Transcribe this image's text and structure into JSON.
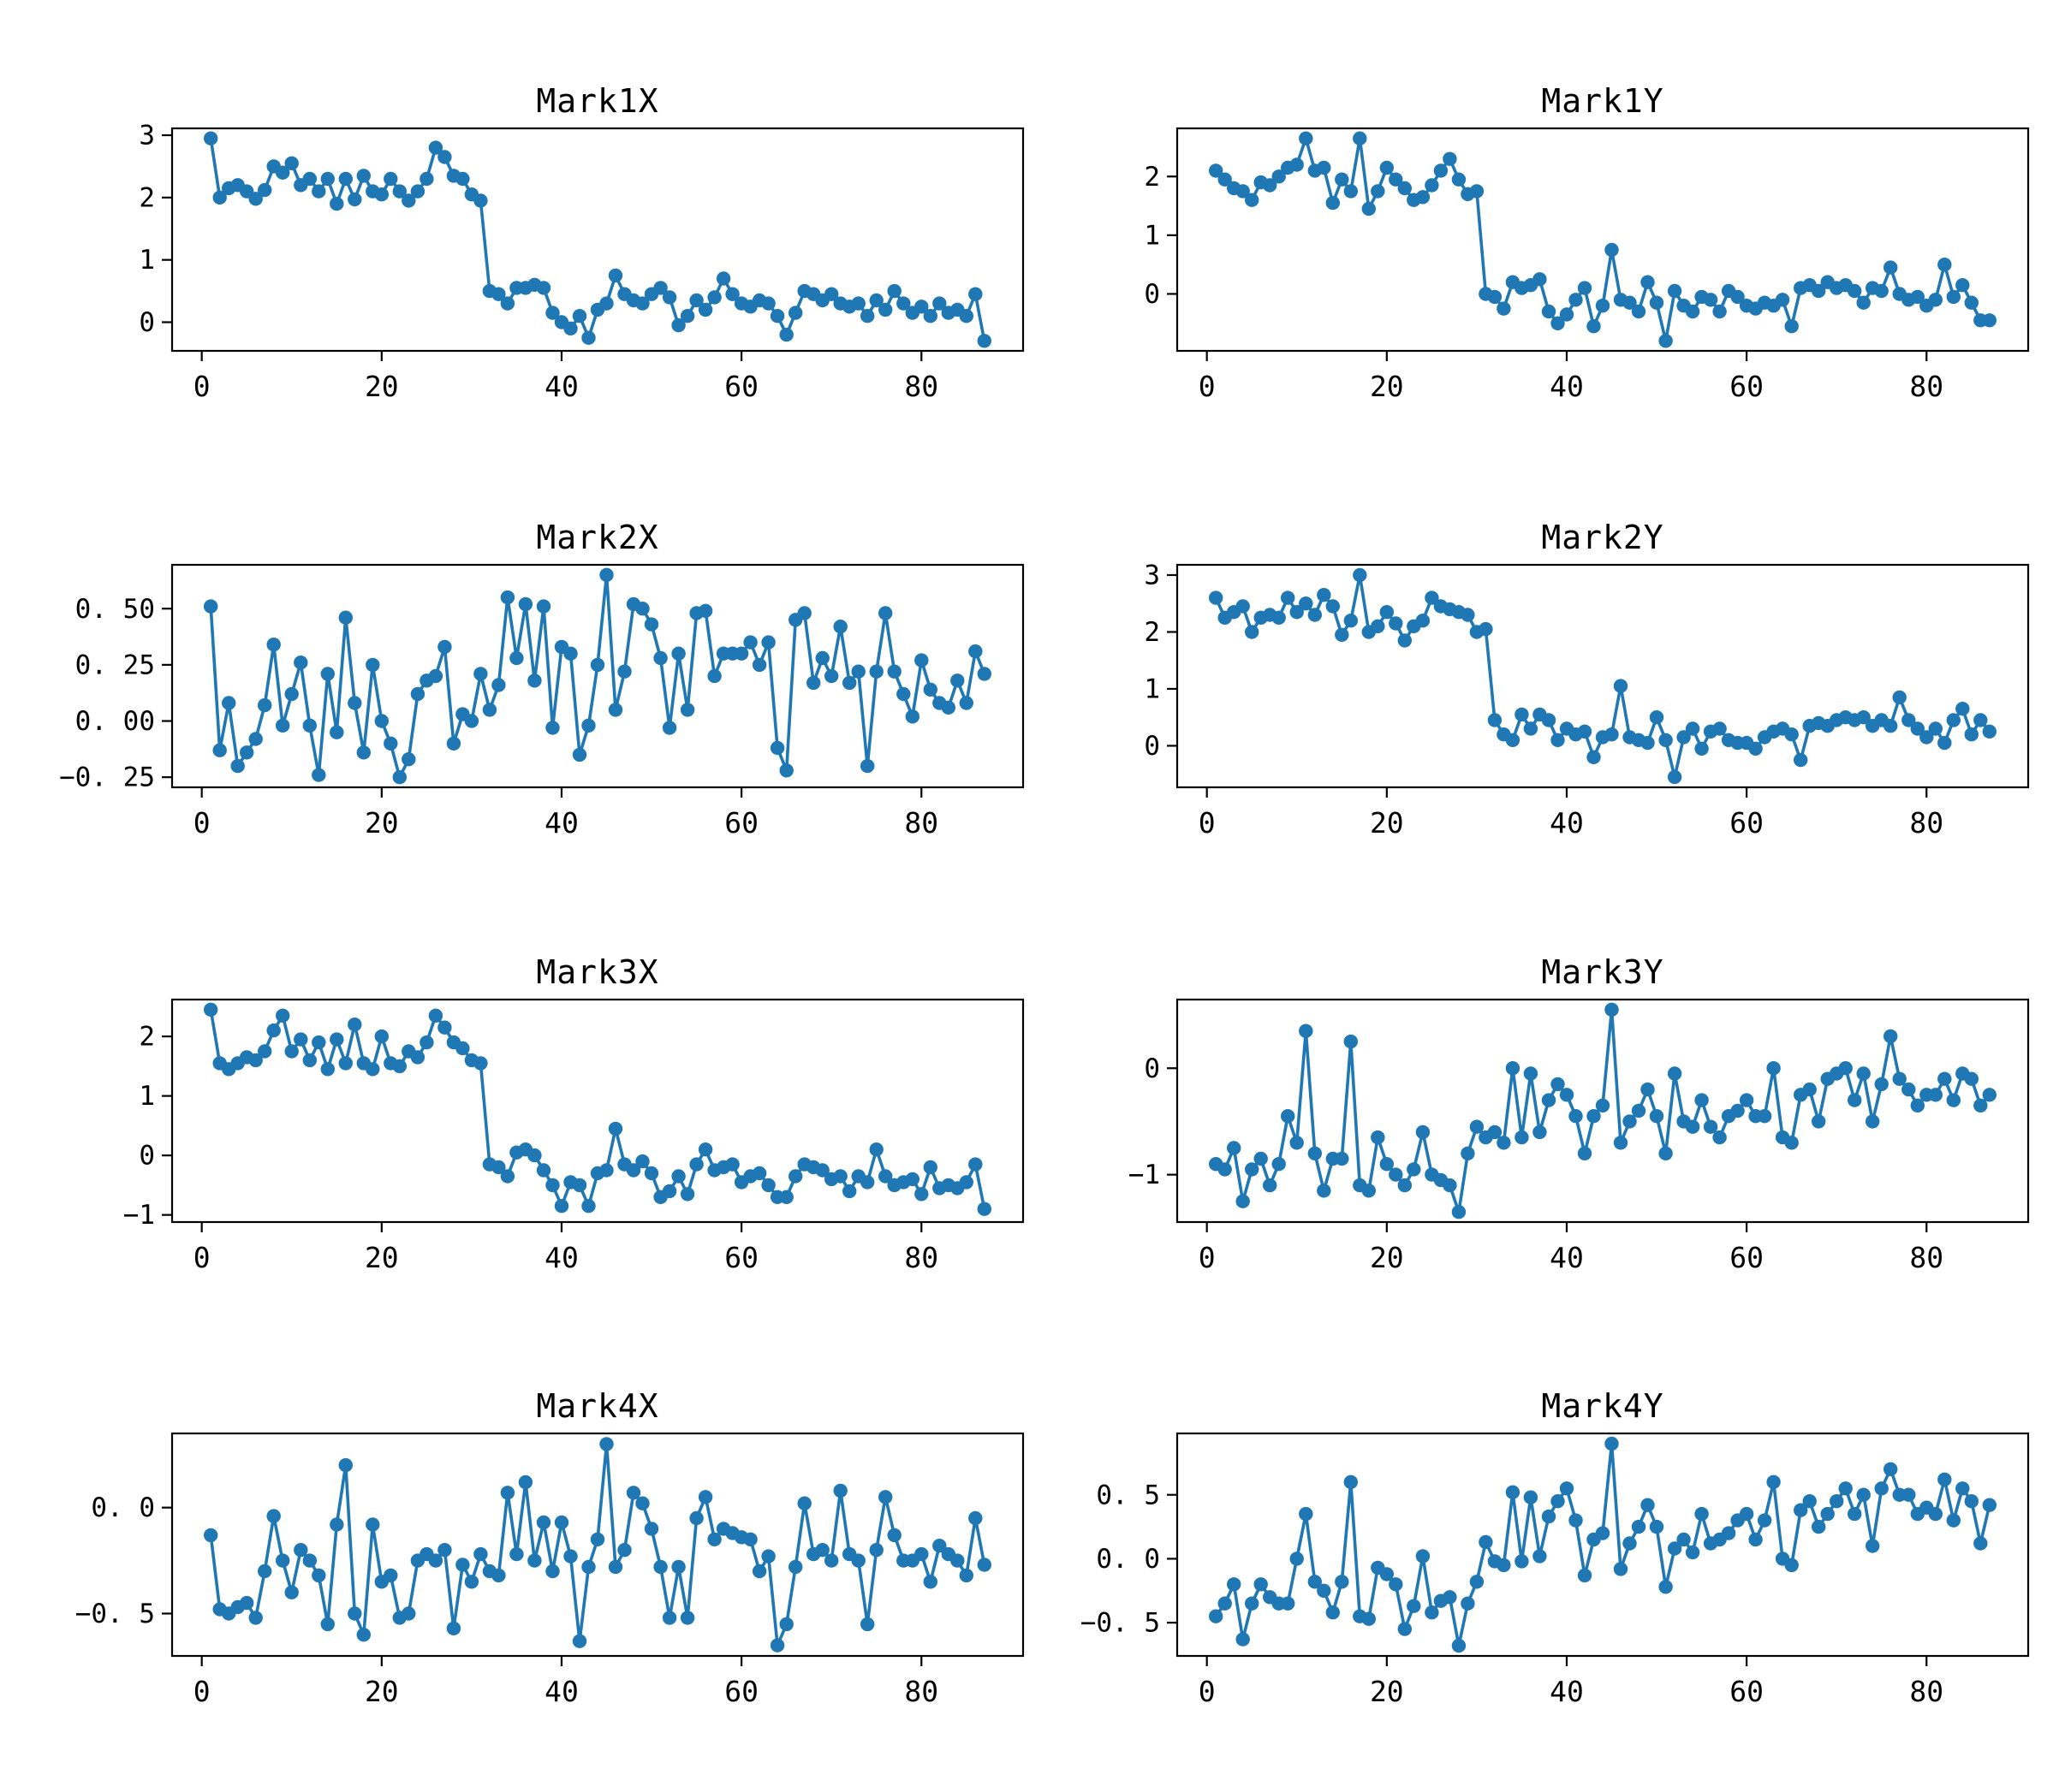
{
  "figure": {
    "background": "#ffffff",
    "series_color": "#1f77b4",
    "axis_color": "#000000",
    "marker": "circle-icon",
    "line_style": "solid",
    "grid": "off",
    "legend": "none"
  },
  "chart_data": [
    {
      "type": "line",
      "title": "Mark1X",
      "x_start": 1,
      "xlim": [
        -3.3,
        91.3
      ],
      "xticks": {
        "values": [
          0,
          20,
          40,
          60,
          80
        ],
        "labels": [
          "0",
          "20",
          "40",
          "60",
          "80"
        ]
      },
      "ylim": [
        -0.46,
        3.11
      ],
      "yticks": {
        "values": [
          0,
          1,
          2,
          3
        ],
        "labels": [
          "0",
          "1",
          "2",
          "3"
        ]
      },
      "values": [
        2.95,
        2.0,
        2.15,
        2.2,
        2.1,
        1.98,
        2.12,
        2.5,
        2.4,
        2.55,
        2.2,
        2.3,
        2.1,
        2.3,
        1.9,
        2.3,
        1.97,
        2.35,
        2.1,
        2.05,
        2.3,
        2.1,
        1.95,
        2.1,
        2.3,
        2.8,
        2.65,
        2.35,
        2.3,
        2.05,
        1.95,
        0.5,
        0.45,
        0.3,
        0.55,
        0.55,
        0.6,
        0.55,
        0.15,
        0.0,
        -0.1,
        0.1,
        -0.25,
        0.2,
        0.3,
        0.75,
        0.45,
        0.35,
        0.3,
        0.45,
        0.55,
        0.4,
        -0.05,
        0.1,
        0.35,
        0.2,
        0.4,
        0.7,
        0.45,
        0.3,
        0.25,
        0.35,
        0.3,
        0.1,
        -0.2,
        0.15,
        0.5,
        0.45,
        0.35,
        0.45,
        0.3,
        0.25,
        0.3,
        0.1,
        0.35,
        0.2,
        0.5,
        0.3,
        0.15,
        0.25,
        0.1,
        0.3,
        0.15,
        0.2,
        0.1,
        0.45,
        -0.3
      ]
    },
    {
      "type": "line",
      "title": "Mark1Y",
      "x_start": 1,
      "xlim": [
        -3.3,
        91.3
      ],
      "xticks": {
        "values": [
          0,
          20,
          40,
          60,
          80
        ],
        "labels": [
          "0",
          "20",
          "40",
          "60",
          "80"
        ]
      },
      "ylim": [
        -0.97,
        2.82
      ],
      "yticks": {
        "values": [
          0,
          1,
          2
        ],
        "labels": [
          "0",
          "1",
          "2"
        ]
      },
      "values": [
        2.1,
        1.95,
        1.8,
        1.75,
        1.6,
        1.9,
        1.85,
        2.0,
        2.15,
        2.2,
        2.65,
        2.1,
        2.15,
        1.55,
        1.95,
        1.75,
        2.65,
        1.45,
        1.75,
        2.15,
        1.95,
        1.8,
        1.6,
        1.65,
        1.85,
        2.1,
        2.3,
        1.95,
        1.7,
        1.75,
        0.0,
        -0.05,
        -0.25,
        0.2,
        0.1,
        0.15,
        0.25,
        -0.3,
        -0.5,
        -0.35,
        -0.1,
        0.1,
        -0.55,
        -0.2,
        0.75,
        -0.1,
        -0.15,
        -0.3,
        0.2,
        -0.15,
        -0.8,
        0.05,
        -0.2,
        -0.3,
        -0.05,
        -0.1,
        -0.3,
        0.05,
        -0.05,
        -0.2,
        -0.25,
        -0.15,
        -0.2,
        -0.1,
        -0.55,
        0.1,
        0.15,
        0.05,
        0.2,
        0.1,
        0.15,
        0.05,
        -0.15,
        0.1,
        0.05,
        0.45,
        0.0,
        -0.1,
        -0.05,
        -0.2,
        -0.1,
        0.5,
        -0.05,
        0.15,
        -0.15,
        -0.45,
        -0.45
      ]
    },
    {
      "type": "line",
      "title": "Mark2X",
      "x_start": 1,
      "xlim": [
        -3.3,
        91.3
      ],
      "xticks": {
        "values": [
          0,
          20,
          40,
          60,
          80
        ],
        "labels": [
          "0",
          "20",
          "40",
          "60",
          "80"
        ]
      },
      "ylim": [
        -0.295,
        0.695
      ],
      "yticks": {
        "values": [
          -0.25,
          0.0,
          0.25,
          0.5
        ],
        "labels": [
          "−0. 25",
          "0. 00",
          "0. 25",
          "0. 50"
        ]
      },
      "values": [
        0.51,
        -0.13,
        0.08,
        -0.2,
        -0.14,
        -0.08,
        0.07,
        0.34,
        -0.02,
        0.12,
        0.26,
        -0.02,
        -0.24,
        0.21,
        -0.05,
        0.46,
        0.08,
        -0.14,
        0.25,
        0.0,
        -0.1,
        -0.25,
        -0.17,
        0.12,
        0.18,
        0.2,
        0.33,
        -0.1,
        0.03,
        0.0,
        0.21,
        0.05,
        0.16,
        0.55,
        0.28,
        0.52,
        0.18,
        0.51,
        -0.03,
        0.33,
        0.3,
        -0.15,
        -0.02,
        0.25,
        0.65,
        0.05,
        0.22,
        0.52,
        0.5,
        0.43,
        0.28,
        -0.03,
        0.3,
        0.05,
        0.48,
        0.49,
        0.2,
        0.3,
        0.3,
        0.3,
        0.35,
        0.25,
        0.35,
        -0.12,
        -0.22,
        0.45,
        0.48,
        0.17,
        0.28,
        0.2,
        0.42,
        0.17,
        0.22,
        -0.2,
        0.22,
        0.48,
        0.22,
        0.12,
        0.02,
        0.27,
        0.14,
        0.08,
        0.06,
        0.18,
        0.08,
        0.31,
        0.21
      ]
    },
    {
      "type": "line",
      "title": "Mark2Y",
      "x_start": 1,
      "xlim": [
        -3.3,
        91.3
      ],
      "xticks": {
        "values": [
          0,
          20,
          40,
          60,
          80
        ],
        "labels": [
          "0",
          "20",
          "40",
          "60",
          "80"
        ]
      },
      "ylim": [
        -0.73,
        3.18
      ],
      "yticks": {
        "values": [
          0,
          1,
          2,
          3
        ],
        "labels": [
          "0",
          "1",
          "2",
          "3"
        ]
      },
      "values": [
        2.6,
        2.25,
        2.35,
        2.45,
        2.0,
        2.25,
        2.3,
        2.25,
        2.6,
        2.35,
        2.5,
        2.3,
        2.65,
        2.45,
        1.95,
        2.2,
        3.0,
        2.0,
        2.1,
        2.35,
        2.15,
        1.85,
        2.1,
        2.2,
        2.6,
        2.45,
        2.4,
        2.35,
        2.3,
        2.0,
        2.05,
        0.45,
        0.2,
        0.1,
        0.55,
        0.3,
        0.55,
        0.45,
        0.1,
        0.3,
        0.2,
        0.25,
        -0.2,
        0.15,
        0.2,
        1.05,
        0.15,
        0.1,
        0.05,
        0.5,
        0.1,
        -0.55,
        0.15,
        0.3,
        -0.05,
        0.25,
        0.3,
        0.1,
        0.05,
        0.05,
        -0.05,
        0.15,
        0.25,
        0.3,
        0.2,
        -0.25,
        0.35,
        0.4,
        0.35,
        0.45,
        0.5,
        0.45,
        0.5,
        0.35,
        0.45,
        0.35,
        0.85,
        0.45,
        0.3,
        0.15,
        0.3,
        0.05,
        0.45,
        0.65,
        0.2,
        0.45,
        0.25
      ]
    },
    {
      "type": "line",
      "title": "Mark3X",
      "x_start": 1,
      "xlim": [
        -3.3,
        91.3
      ],
      "xticks": {
        "values": [
          0,
          20,
          40,
          60,
          80
        ],
        "labels": [
          "0",
          "20",
          "40",
          "60",
          "80"
        ]
      },
      "ylim": [
        -1.12,
        2.62
      ],
      "yticks": {
        "values": [
          -1,
          0,
          1,
          2
        ],
        "labels": [
          "−1",
          "0",
          "1",
          "2"
        ]
      },
      "values": [
        2.45,
        1.55,
        1.45,
        1.55,
        1.65,
        1.6,
        1.75,
        2.1,
        2.35,
        1.75,
        1.95,
        1.6,
        1.9,
        1.45,
        1.95,
        1.55,
        2.2,
        1.55,
        1.45,
        2.0,
        1.55,
        1.5,
        1.75,
        1.65,
        1.9,
        2.35,
        2.15,
        1.9,
        1.8,
        1.6,
        1.55,
        -0.15,
        -0.2,
        -0.35,
        0.05,
        0.1,
        0.0,
        -0.25,
        -0.5,
        -0.85,
        -0.45,
        -0.5,
        -0.85,
        -0.3,
        -0.25,
        0.45,
        -0.15,
        -0.25,
        -0.1,
        -0.3,
        -0.7,
        -0.6,
        -0.35,
        -0.65,
        -0.15,
        0.1,
        -0.25,
        -0.2,
        -0.15,
        -0.45,
        -0.35,
        -0.3,
        -0.5,
        -0.7,
        -0.7,
        -0.35,
        -0.15,
        -0.2,
        -0.25,
        -0.4,
        -0.35,
        -0.6,
        -0.35,
        -0.45,
        0.1,
        -0.35,
        -0.5,
        -0.45,
        -0.4,
        -0.65,
        -0.2,
        -0.55,
        -0.5,
        -0.55,
        -0.45,
        -0.15,
        -0.9
      ]
    },
    {
      "type": "line",
      "title": "Mark3Y",
      "x_start": 1,
      "xlim": [
        -3.3,
        91.3
      ],
      "xticks": {
        "values": [
          0,
          20,
          40,
          60,
          80
        ],
        "labels": [
          "0",
          "20",
          "40",
          "60",
          "80"
        ]
      },
      "ylim": [
        -1.445,
        0.645
      ],
      "yticks": {
        "values": [
          -1,
          0
        ],
        "labels": [
          "−1",
          "0"
        ]
      },
      "values": [
        -0.9,
        -0.95,
        -0.75,
        -1.25,
        -0.95,
        -0.85,
        -1.1,
        -0.9,
        -0.45,
        -0.7,
        0.35,
        -0.8,
        -1.15,
        -0.85,
        -0.85,
        0.25,
        -1.1,
        -1.15,
        -0.65,
        -0.9,
        -1.0,
        -1.1,
        -0.95,
        -0.6,
        -1.0,
        -1.05,
        -1.1,
        -1.35,
        -0.8,
        -0.55,
        -0.65,
        -0.6,
        -0.7,
        0.0,
        -0.65,
        -0.05,
        -0.6,
        -0.3,
        -0.15,
        -0.25,
        -0.45,
        -0.8,
        -0.45,
        -0.35,
        0.55,
        -0.7,
        -0.5,
        -0.4,
        -0.2,
        -0.45,
        -0.8,
        -0.05,
        -0.5,
        -0.55,
        -0.3,
        -0.55,
        -0.65,
        -0.45,
        -0.4,
        -0.3,
        -0.45,
        -0.45,
        0.0,
        -0.65,
        -0.7,
        -0.25,
        -0.2,
        -0.5,
        -0.1,
        -0.05,
        0.0,
        -0.3,
        -0.05,
        -0.5,
        -0.15,
        0.3,
        -0.1,
        -0.2,
        -0.35,
        -0.25,
        -0.25,
        -0.1,
        -0.3,
        -0.05,
        -0.1,
        -0.35,
        -0.25
      ]
    },
    {
      "type": "line",
      "title": "Mark4X",
      "x_start": 1,
      "xlim": [
        -3.3,
        91.3
      ],
      "xticks": {
        "values": [
          0,
          20,
          40,
          60,
          80
        ],
        "labels": [
          "0",
          "20",
          "40",
          "60",
          "80"
        ]
      },
      "ylim": [
        -0.7,
        0.35
      ],
      "yticks": {
        "values": [
          -0.5,
          0.0
        ],
        "labels": [
          "−0. 5",
          "0. 0"
        ]
      },
      "values": [
        -0.13,
        -0.48,
        -0.5,
        -0.47,
        -0.45,
        -0.52,
        -0.3,
        -0.04,
        -0.25,
        -0.4,
        -0.2,
        -0.25,
        -0.32,
        -0.55,
        -0.08,
        0.2,
        -0.5,
        -0.6,
        -0.08,
        -0.35,
        -0.32,
        -0.52,
        -0.5,
        -0.25,
        -0.22,
        -0.25,
        -0.2,
        -0.57,
        -0.27,
        -0.35,
        -0.22,
        -0.3,
        -0.32,
        0.07,
        -0.22,
        0.12,
        -0.25,
        -0.07,
        -0.3,
        -0.07,
        -0.23,
        -0.63,
        -0.28,
        -0.15,
        0.3,
        -0.28,
        -0.2,
        0.07,
        0.02,
        -0.1,
        -0.28,
        -0.52,
        -0.28,
        -0.52,
        -0.05,
        0.05,
        -0.15,
        -0.1,
        -0.12,
        -0.14,
        -0.15,
        -0.3,
        -0.23,
        -0.65,
        -0.55,
        -0.28,
        0.02,
        -0.22,
        -0.2,
        -0.25,
        0.08,
        -0.22,
        -0.25,
        -0.55,
        -0.2,
        0.05,
        -0.13,
        -0.25,
        -0.25,
        -0.22,
        -0.35,
        -0.18,
        -0.22,
        -0.25,
        -0.32,
        -0.05,
        -0.27
      ]
    },
    {
      "type": "line",
      "title": "Mark4Y",
      "x_start": 1,
      "xlim": [
        -3.3,
        91.3
      ],
      "xticks": {
        "values": [
          0,
          20,
          40,
          60,
          80
        ],
        "labels": [
          "0",
          "20",
          "40",
          "60",
          "80"
        ]
      },
      "ylim": [
        -0.76,
        0.98
      ],
      "yticks": {
        "values": [
          -0.5,
          0.0,
          0.5
        ],
        "labels": [
          "−0. 5",
          "0. 0",
          "0. 5"
        ]
      },
      "values": [
        -0.45,
        -0.35,
        -0.2,
        -0.63,
        -0.35,
        -0.2,
        -0.3,
        -0.35,
        -0.35,
        0.0,
        0.35,
        -0.18,
        -0.25,
        -0.42,
        -0.18,
        0.6,
        -0.45,
        -0.47,
        -0.07,
        -0.12,
        -0.2,
        -0.55,
        -0.37,
        0.02,
        -0.42,
        -0.33,
        -0.3,
        -0.68,
        -0.35,
        -0.18,
        0.13,
        -0.02,
        -0.05,
        0.52,
        -0.02,
        0.48,
        0.02,
        0.33,
        0.45,
        0.55,
        0.3,
        -0.13,
        0.15,
        0.2,
        0.9,
        -0.08,
        0.12,
        0.25,
        0.42,
        0.25,
        -0.22,
        0.08,
        0.15,
        0.05,
        0.35,
        0.12,
        0.15,
        0.2,
        0.3,
        0.35,
        0.15,
        0.3,
        0.6,
        0.0,
        -0.05,
        0.38,
        0.45,
        0.25,
        0.35,
        0.45,
        0.55,
        0.35,
        0.5,
        0.1,
        0.55,
        0.7,
        0.5,
        0.5,
        0.35,
        0.4,
        0.35,
        0.62,
        0.3,
        0.55,
        0.45,
        0.12,
        0.42
      ]
    }
  ]
}
